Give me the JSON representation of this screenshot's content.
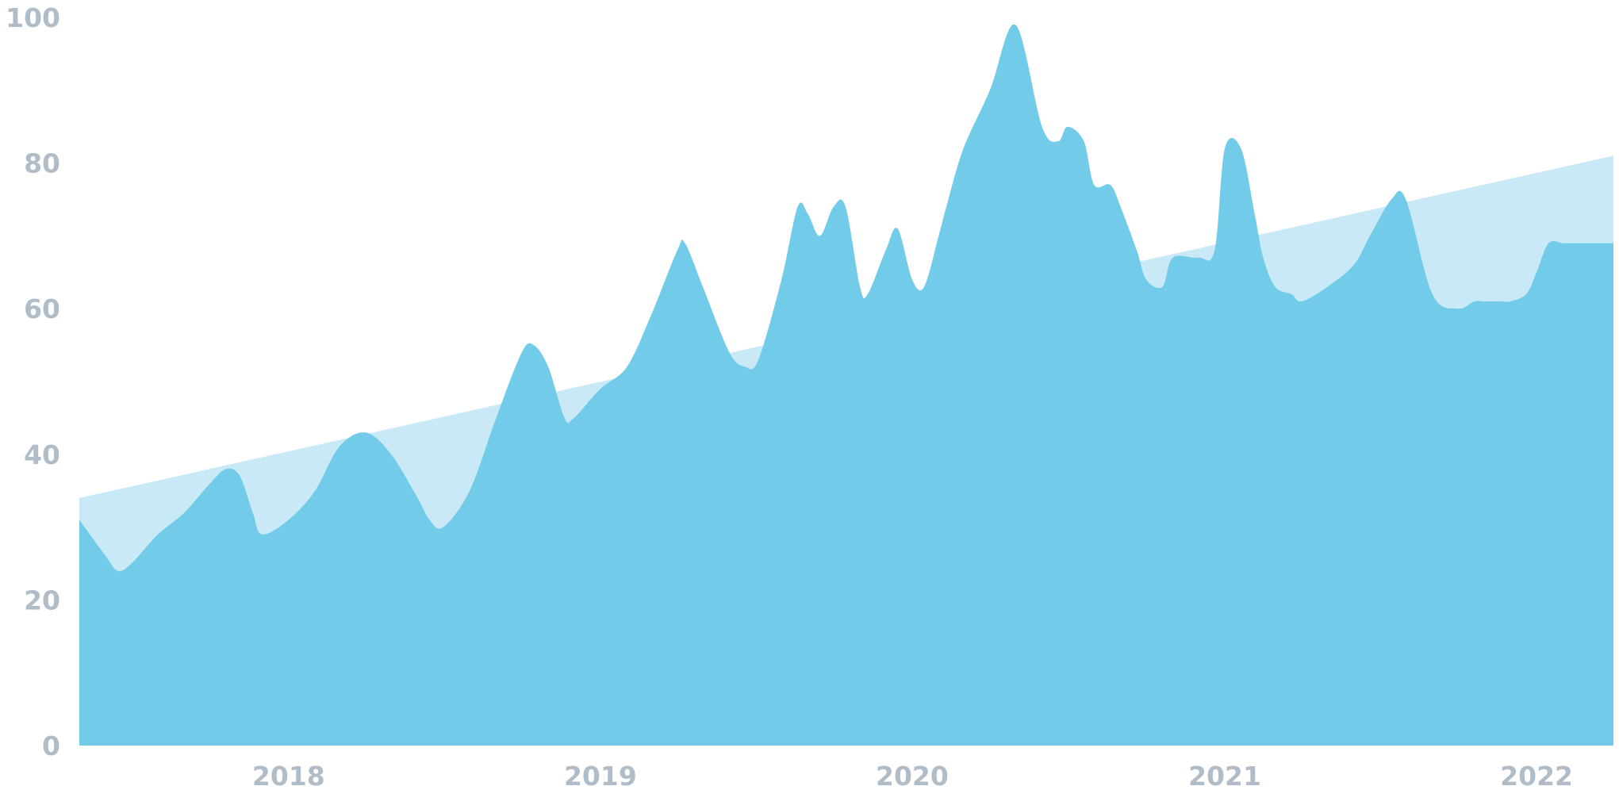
{
  "chart_data": {
    "type": "area",
    "title": "",
    "xlabel": "",
    "ylabel": "",
    "ylim": [
      0,
      100
    ],
    "xlim": [
      "2017-05-01",
      "2022-04-01"
    ],
    "grid": false,
    "legend": "none",
    "y_ticks": [
      "0",
      "20",
      "40",
      "60",
      "80",
      "100"
    ],
    "x_ticks": [
      {
        "label": "2018",
        "date": "2018-01-01"
      },
      {
        "label": "2019",
        "date": "2019-01-01"
      },
      {
        "label": "2020",
        "date": "2020-01-01"
      },
      {
        "label": "2021",
        "date": "2021-01-01"
      },
      {
        "label": "2022",
        "date": "2022-01-01"
      }
    ],
    "colors": {
      "trend": "#c9e9f7",
      "series": "#72cce9",
      "tick": "#b0bcc8"
    },
    "series": [
      {
        "role": "trend",
        "x": [
          "2017-05-01",
          "2022-04-01"
        ],
        "values": [
          34,
          81
        ]
      },
      {
        "role": "main",
        "x": [
          "2017-05-01",
          "2017-06-01",
          "2017-06-15",
          "2017-07-01",
          "2017-08-01",
          "2017-09-01",
          "2017-10-01",
          "2017-10-20",
          "2017-11-05",
          "2017-11-20",
          "2017-12-01",
          "2018-01-01",
          "2018-02-01",
          "2018-03-01",
          "2018-04-01",
          "2018-05-01",
          "2018-06-01",
          "2018-06-15",
          "2018-07-01",
          "2018-08-01",
          "2018-09-01",
          "2018-10-01",
          "2018-10-15",
          "2018-11-01",
          "2018-11-20",
          "2018-12-01",
          "2019-01-01",
          "2019-02-01",
          "2019-03-01",
          "2019-04-01",
          "2019-04-10",
          "2019-05-01",
          "2019-06-01",
          "2019-06-20",
          "2019-07-05",
          "2019-08-01",
          "2019-08-20",
          "2019-09-01",
          "2019-09-15",
          "2019-10-01",
          "2019-10-15",
          "2019-11-01",
          "2019-11-10",
          "2019-12-01",
          "2019-12-15",
          "2020-01-01",
          "2020-01-15",
          "2020-02-01",
          "2020-02-10",
          "2020-03-01",
          "2020-04-01",
          "2020-05-01",
          "2020-06-01",
          "2020-06-20",
          "2020-07-01",
          "2020-07-20",
          "2020-08-01",
          "2020-08-20",
          "2020-09-01",
          "2020-09-20",
          "2020-10-01",
          "2020-10-20",
          "2020-11-01",
          "2020-12-01",
          "2020-12-20",
          "2021-01-01",
          "2021-01-20",
          "2021-02-05",
          "2021-02-15",
          "2021-03-01",
          "2021-03-20",
          "2021-04-01",
          "2021-05-01",
          "2021-06-01",
          "2021-06-20",
          "2021-07-15",
          "2021-08-01",
          "2021-09-01",
          "2021-10-01",
          "2021-10-20",
          "2021-11-01",
          "2021-11-20",
          "2021-12-01",
          "2021-12-20",
          "2022-01-01",
          "2022-01-15",
          "2022-02-01",
          "2022-02-15",
          "2022-03-01",
          "2022-04-01"
        ],
        "values": [
          31,
          26,
          24,
          25,
          29,
          32,
          36,
          38,
          37,
          32,
          29,
          31,
          35,
          41,
          43,
          40,
          34,
          31,
          30,
          35,
          45,
          54,
          55,
          52,
          45,
          45,
          49,
          52,
          59,
          68,
          69,
          63,
          54,
          52,
          53,
          64,
          74,
          73,
          70,
          74,
          74,
          63,
          62,
          68,
          71,
          64,
          63,
          70,
          74,
          82,
          90,
          99,
          85,
          83,
          85,
          83,
          77,
          77,
          74,
          68,
          64,
          63,
          67,
          67,
          68,
          82,
          82,
          73,
          67,
          63,
          62,
          61,
          63,
          66,
          70,
          75,
          75,
          62,
          60,
          61,
          61,
          61,
          61,
          62,
          65,
          69,
          69,
          69,
          69,
          69
        ]
      }
    ]
  }
}
